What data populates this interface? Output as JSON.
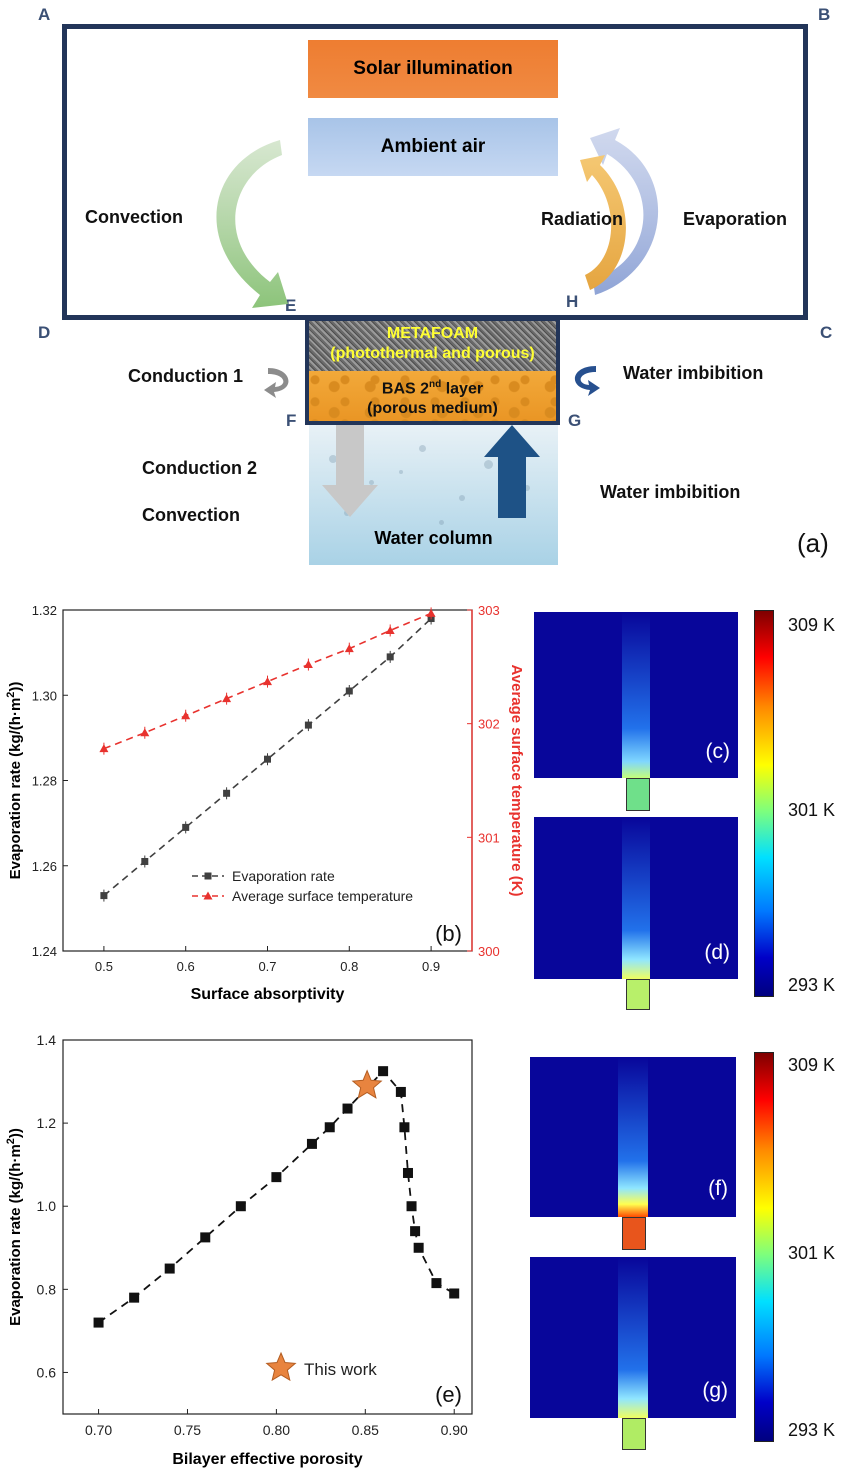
{
  "diagram": {
    "corners": {
      "A": "A",
      "B": "B",
      "C": "C",
      "D": "D",
      "E": "E",
      "F": "F",
      "G": "G",
      "H": "H"
    },
    "solar": "Solar illumination",
    "ambient": "Ambient air",
    "convection_top": "Convection",
    "radiation": "Radiation",
    "evaporation": "Evaporation",
    "metafoam_line1": "METAFOAM",
    "metafoam_line2": "(photothermal and porous)",
    "bas_line1": "BAS 2nd layer",
    "bas_line2": "(porous medium)",
    "conduction1": "Conduction 1",
    "water_imbibition_upper": "Water imbibition",
    "conduction2": "Conduction 2",
    "convection_bottom": "Convection",
    "water_imbibition_lower": "Water imbibition",
    "water_column": "Water column",
    "panel": "(a)"
  },
  "colors": {
    "frame": "#223559",
    "solar": "#ee7d31",
    "ambient": "#b7cfee",
    "evap_series": "#404040",
    "temp_series": "#e8322e",
    "heat_bg": "#08069a"
  },
  "heatmaps": {
    "top_panels": [
      "(c)",
      "(d)"
    ],
    "bottom_panels": [
      "(f)",
      "(g)"
    ],
    "colorbar_labels": [
      "309 K",
      "301 K",
      "293 K"
    ]
  },
  "chart_data": [
    {
      "type": "line",
      "panel": "(b)",
      "xlabel": "Surface absorptivity",
      "ylabel": "Evaporation rate (kg/(h·m²))",
      "y2label": "Average surface temperature (K)",
      "xlim": [
        0.45,
        0.95
      ],
      "ylim": [
        1.24,
        1.32
      ],
      "y2lim": [
        300,
        303
      ],
      "xticks": [
        "0.5",
        "0.6",
        "0.7",
        "0.8",
        "0.9"
      ],
      "yticks": [
        "1.24",
        "1.26",
        "1.28",
        "1.30",
        "1.32"
      ],
      "y2ticks": [
        "300",
        "301",
        "302",
        "303"
      ],
      "x": [
        0.5,
        0.55,
        0.6,
        0.65,
        0.7,
        0.75,
        0.8,
        0.85,
        0.9
      ],
      "series": [
        {
          "name": "Evaporation rate",
          "axis": "left",
          "marker": "square",
          "values": [
            1.253,
            1.261,
            1.269,
            1.277,
            1.285,
            1.293,
            1.301,
            1.309,
            1.318
          ]
        },
        {
          "name": "Average surface temperature",
          "axis": "right",
          "marker": "triangle",
          "values": [
            301.78,
            301.92,
            302.07,
            302.22,
            302.37,
            302.52,
            302.66,
            302.82,
            302.97
          ]
        }
      ],
      "legend_position": "bottom-center"
    },
    {
      "type": "line",
      "panel": "(e)",
      "xlabel": "Bilayer effective porosity",
      "ylabel": "Evaporation rate (kg/(h·m²))",
      "xlim": [
        0.68,
        0.91
      ],
      "ylim": [
        0.5,
        1.4
      ],
      "xticks": [
        "0.70",
        "0.75",
        "0.80",
        "0.85",
        "0.90"
      ],
      "yticks": [
        "0.6",
        "0.8",
        "1.0",
        "1.2",
        "1.4"
      ],
      "x": [
        0.7,
        0.72,
        0.74,
        0.76,
        0.78,
        0.8,
        0.82,
        0.83,
        0.84,
        0.86,
        0.87,
        0.872,
        0.874,
        0.876,
        0.878,
        0.88,
        0.89,
        0.9
      ],
      "series": [
        {
          "name": "",
          "marker": "square",
          "values": [
            0.72,
            0.78,
            0.85,
            0.925,
            1.0,
            1.07,
            1.15,
            1.19,
            1.235,
            1.325,
            1.275,
            1.19,
            1.08,
            1.0,
            0.94,
            0.9,
            0.815,
            0.79
          ]
        }
      ],
      "highlight": {
        "label": "This work",
        "x": 0.851,
        "y": 1.29
      },
      "legend_position": "bottom-center"
    }
  ]
}
